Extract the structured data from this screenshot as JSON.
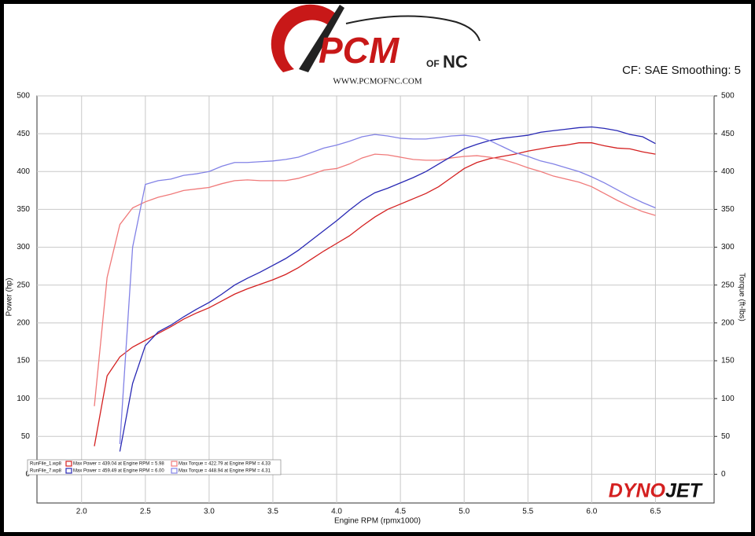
{
  "chart_data": {
    "type": "line",
    "logo": {
      "main": "PCM",
      "of": "OF",
      "nc": "NC",
      "url": "WWW.PCMOFNC.COM"
    },
    "settings_text": "CF: SAE Smoothing: 5",
    "brand": {
      "dyno": "DYNO",
      "jet": "JET"
    },
    "x_label": "Engine RPM (rpmx1000)",
    "y_label": "Power (hp)",
    "y2_label": "Torque (ft-lbs)",
    "xlim": [
      1.65,
      6.96
    ],
    "ylim": [
      -38,
      500
    ],
    "y2lim": [
      -38,
      500
    ],
    "xticks": [
      {
        "value": 2,
        "label": "2.0"
      },
      2.5,
      {
        "value": 3,
        "label": "3.0"
      },
      3.5,
      {
        "value": 4,
        "label": "4.0"
      },
      4.5,
      {
        "value": 5,
        "label": "5.0"
      },
      5.5,
      {
        "value": 6,
        "label": "6.0"
      },
      6.5
    ],
    "yticks": [
      0,
      50,
      100,
      150,
      200,
      250,
      300,
      350,
      400,
      450,
      500
    ],
    "y2ticks": [
      0,
      50,
      100,
      150,
      200,
      250,
      300,
      350,
      400,
      450,
      500
    ],
    "grid": true,
    "legend_files": [
      "RunFile_1.wp8",
      "RunFile_7.wp8"
    ],
    "x": [
      2.1,
      2.2,
      2.3,
      2.4,
      2.5,
      2.6,
      2.7,
      2.8,
      2.9,
      3.0,
      3.1,
      3.2,
      3.3,
      3.4,
      3.5,
      3.6,
      3.7,
      3.8,
      3.9,
      4.0,
      4.1,
      4.2,
      4.3,
      4.4,
      4.5,
      4.6,
      4.7,
      4.8,
      4.9,
      5.0,
      5.1,
      5.2,
      5.3,
      5.4,
      5.5,
      5.6,
      5.7,
      5.8,
      5.9,
      6.0,
      6.1,
      6.2,
      6.3,
      6.4,
      6.5
    ],
    "series": [
      {
        "name": "Max Power = 439.04 at Engine RPM = 5.98",
        "color": "#d42020",
        "values": [
          37,
          130,
          155,
          168,
          177,
          186,
          195,
          205,
          213,
          220,
          229,
          238,
          245,
          251,
          257,
          264,
          273,
          284,
          295,
          305,
          315,
          328,
          340,
          350,
          357,
          364,
          371,
          380,
          392,
          404,
          412,
          417,
          420,
          423,
          427,
          430,
          433,
          435,
          438,
          438,
          434,
          431,
          430,
          426,
          423
        ]
      },
      {
        "name": "Max Torque = 422.79 at Engine RPM = 4.33",
        "color": "#f07a7a",
        "axis": "y2",
        "values": [
          90,
          260,
          330,
          352,
          360,
          366,
          370,
          375,
          377,
          379,
          384,
          388,
          389,
          388,
          388,
          388,
          391,
          396,
          402,
          404,
          410,
          418,
          423,
          422,
          419,
          416,
          415,
          415,
          418,
          420,
          421,
          419,
          416,
          411,
          405,
          400,
          394,
          390,
          386,
          380,
          371,
          362,
          354,
          347,
          342
        ]
      },
      {
        "name": "Max Power = 459.49 at Engine RPM = 6.00",
        "color": "#2828b4",
        "values": [
          null,
          null,
          30,
          120,
          170,
          188,
          197,
          208,
          218,
          227,
          238,
          250,
          259,
          267,
          276,
          285,
          296,
          309,
          322,
          335,
          349,
          362,
          372,
          378,
          385,
          392,
          400,
          410,
          420,
          430,
          436,
          441,
          444,
          446,
          448,
          452,
          454,
          456,
          458,
          459,
          457,
          454,
          449,
          446,
          437
        ]
      },
      {
        "name": "Max Torque = 448.94 at Engine RPM = 4.31",
        "color": "#8282e6",
        "axis": "y2",
        "values": [
          null,
          null,
          40,
          300,
          383,
          388,
          390,
          395,
          397,
          400,
          407,
          412,
          412,
          413,
          414,
          416,
          419,
          425,
          431,
          435,
          440,
          446,
          449,
          447,
          444,
          443,
          443,
          445,
          447,
          448,
          446,
          441,
          433,
          425,
          420,
          414,
          410,
          405,
          400,
          393,
          385,
          376,
          367,
          359,
          352
        ]
      }
    ]
  }
}
